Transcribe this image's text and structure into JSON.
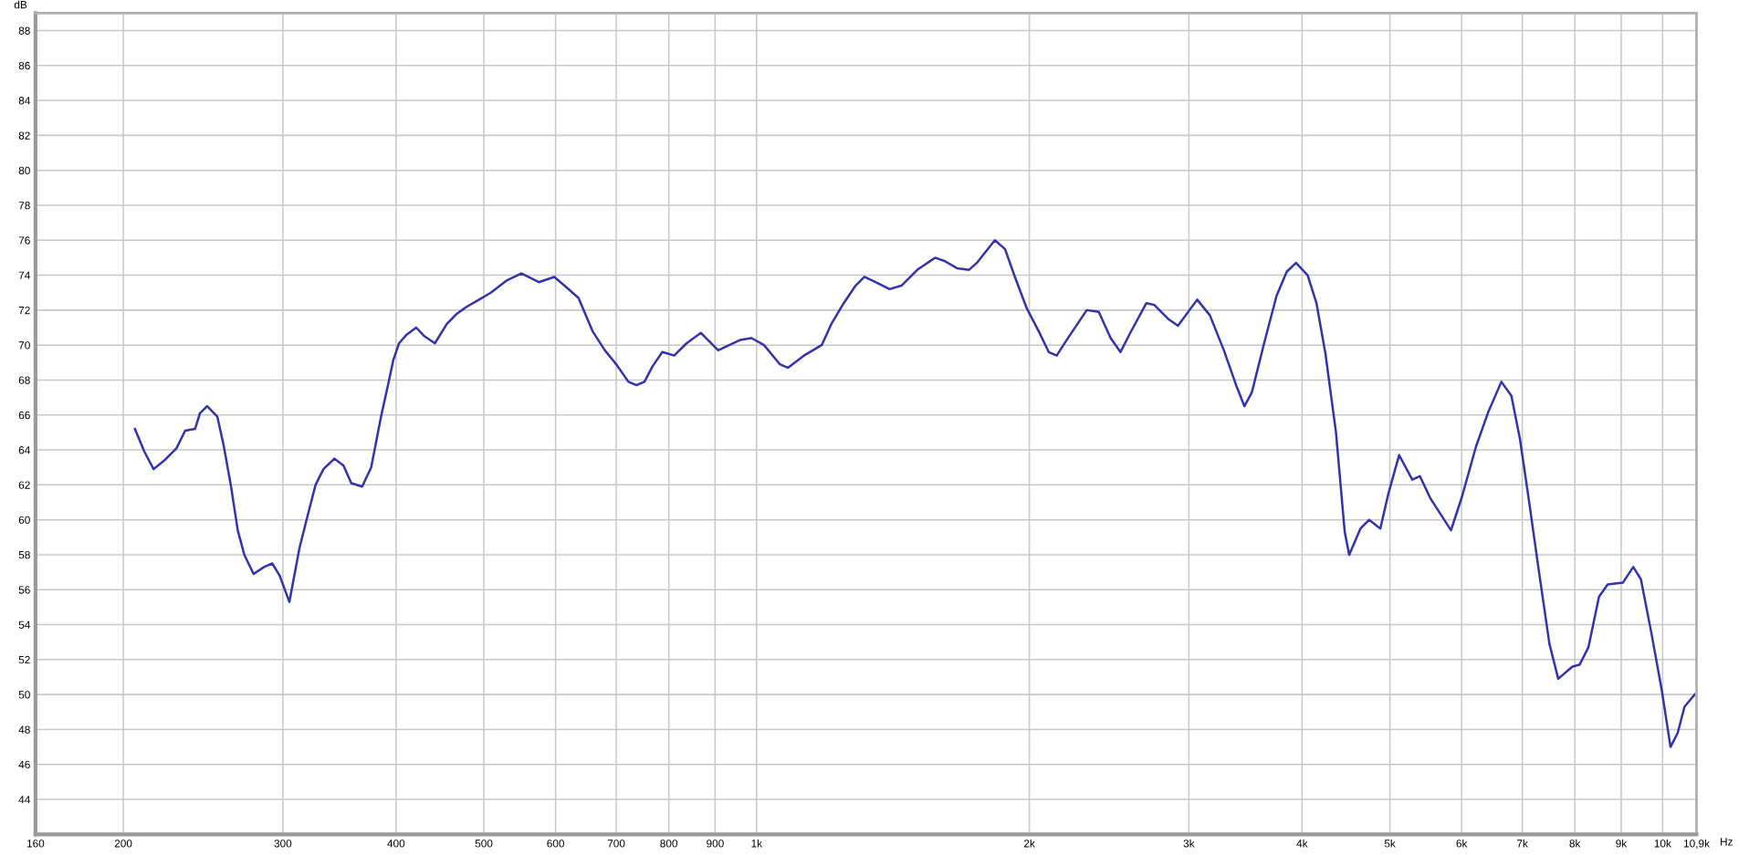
{
  "chart_data": {
    "type": "line",
    "xlabel": "Hz",
    "ylabel": "dB",
    "log": "x",
    "grid": true,
    "marker": "none",
    "line_style": "solid",
    "xlim": [
      160,
      10900
    ],
    "ylim": [
      42,
      89
    ],
    "xticks": [
      160,
      200,
      300,
      400,
      500,
      600,
      700,
      800,
      900,
      {
        "value": 1000,
        "label": "1k"
      },
      {
        "value": 2000,
        "label": "2k"
      },
      {
        "value": 3000,
        "label": "3k"
      },
      {
        "value": 4000,
        "label": "4k"
      },
      {
        "value": 5000,
        "label": "5k"
      },
      {
        "value": 6000,
        "label": "6k"
      },
      {
        "value": 7000,
        "label": "7k"
      },
      {
        "value": 8000,
        "label": "8k"
      },
      {
        "value": 9000,
        "label": "9k"
      },
      {
        "value": 10000,
        "label": "10k"
      },
      {
        "value": 10900,
        "label": "10,9k"
      }
    ],
    "yticks": [
      44,
      46,
      48,
      50,
      52,
      54,
      56,
      58,
      60,
      62,
      64,
      66,
      68,
      70,
      72,
      74,
      76,
      78,
      80,
      82,
      84,
      86,
      88
    ],
    "series": [
      {
        "color": "#3333aa",
        "x": [
          206,
          211,
          216,
          222,
          229,
          234,
          240,
          243,
          247.5,
          254,
          258,
          263,
          267.5,
          272,
          278.5,
          286,
          292,
          297.6,
          305,
          313,
          319,
          326,
          332.6,
          342,
          350,
          357,
          367,
          375.5,
          385,
          393,
          397,
          403,
          411,
          421,
          430,
          441.5,
          455,
          467,
          479,
          494,
          509,
          530,
          550,
          575,
          598,
          617,
          636,
          659,
          680,
          700,
          722,
          737,
          752,
          768,
          787,
          811,
          837,
          868,
          907,
          960,
          987,
          1019,
          1061,
          1083,
          1128,
          1180,
          1209,
          1248,
          1286,
          1315,
          1353,
          1402,
          1445,
          1504,
          1574,
          1614,
          1664,
          1715,
          1750,
          1832,
          1880,
          1928,
          1987,
          2048,
          2101,
          2144,
          2200,
          2314,
          2386,
          2459,
          2521,
          2585,
          2693,
          2747,
          2846,
          2918,
          3064,
          3165,
          3279,
          3383,
          3455,
          3521,
          3632,
          3748,
          3847,
          3939,
          4057,
          4149,
          4245,
          4360,
          4458,
          4509,
          4640,
          4744,
          4849,
          4880,
          4981,
          5119,
          5293,
          5396,
          5546,
          5691,
          5840,
          6004,
          6224,
          6424,
          6638,
          6809,
          6960,
          7120,
          7305,
          7500,
          7670,
          7953,
          8096,
          8281,
          8507,
          8697,
          9039,
          9281,
          9463,
          9720,
          9982,
          10203,
          10390,
          10572,
          10850
        ],
        "values": [
          65.2,
          63.9,
          62.9,
          63.4,
          64.1,
          65.1,
          65.2,
          66.1,
          66.5,
          65.9,
          64.3,
          61.9,
          59.4,
          58.0,
          56.9,
          57.3,
          57.5,
          56.8,
          55.3,
          58.4,
          60.1,
          62.0,
          62.9,
          63.5,
          63.1,
          62.1,
          61.9,
          63.0,
          65.9,
          68.0,
          69.1,
          70.1,
          70.6,
          71.0,
          70.5,
          70.1,
          71.2,
          71.8,
          72.2,
          72.6,
          73.0,
          73.7,
          74.1,
          73.6,
          73.9,
          73.3,
          72.7,
          70.8,
          69.7,
          68.9,
          67.9,
          67.7,
          67.9,
          68.8,
          69.6,
          69.4,
          70.1,
          70.7,
          69.7,
          70.3,
          70.4,
          70.0,
          68.9,
          68.7,
          69.4,
          70.0,
          71.2,
          72.4,
          73.4,
          73.9,
          73.6,
          73.2,
          73.4,
          74.3,
          75.0,
          74.8,
          74.4,
          74.3,
          74.7,
          76.0,
          75.5,
          73.9,
          72.1,
          70.8,
          69.6,
          69.4,
          70.3,
          72.0,
          71.9,
          70.4,
          69.6,
          70.7,
          72.4,
          72.3,
          71.5,
          71.1,
          72.6,
          71.7,
          69.7,
          67.7,
          66.5,
          67.3,
          70.1,
          72.8,
          74.2,
          74.7,
          74.0,
          72.4,
          69.5,
          65.0,
          59.3,
          58.0,
          59.5,
          60.0,
          59.6,
          59.5,
          61.5,
          63.7,
          62.3,
          62.5,
          61.2,
          60.3,
          59.4,
          61.3,
          64.2,
          66.2,
          67.9,
          67.1,
          64.6,
          61.1,
          57.0,
          52.9,
          50.9,
          51.6,
          51.7,
          52.7,
          55.6,
          56.3,
          56.4,
          57.3,
          56.6,
          53.5,
          50.2,
          47.0,
          47.8,
          49.3,
          50.0
        ]
      }
    ]
  }
}
